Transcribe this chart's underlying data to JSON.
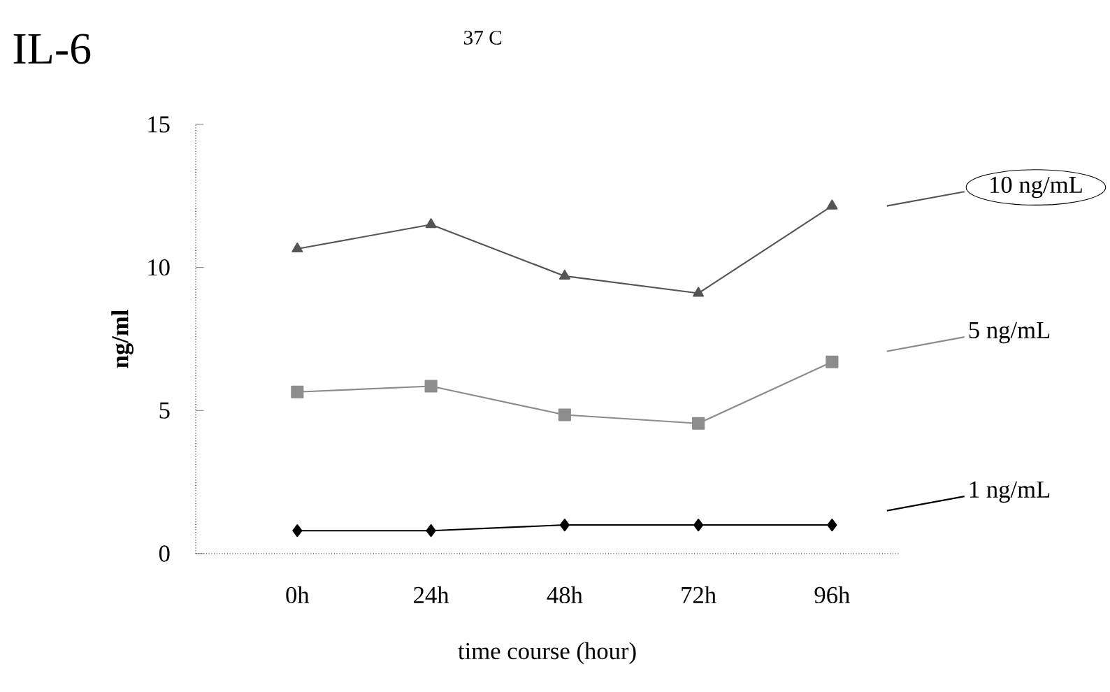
{
  "chart_data": {
    "type": "line",
    "title": "IL-6",
    "subtitle": "37 C",
    "xlabel": "time course (hour)",
    "ylabel": "ng/ml",
    "categories": [
      "0h",
      "24h",
      "48h",
      "72h",
      "96h"
    ],
    "ylim": [
      0,
      15
    ],
    "yticks": [
      0,
      5,
      10,
      15
    ],
    "grid": false,
    "legend": "right",
    "series": [
      {
        "name": "10 ng/mL",
        "color": "#555555",
        "marker": "triangle",
        "values": [
          10.65,
          11.5,
          9.7,
          9.1,
          12.15
        ]
      },
      {
        "name": "5 ng/mL",
        "color": "#8c8c8c",
        "marker": "square",
        "values": [
          5.65,
          5.85,
          4.85,
          4.55,
          6.7
        ]
      },
      {
        "name": "1 ng/mL",
        "color": "#000000",
        "marker": "diamond",
        "values": [
          0.8,
          0.8,
          1.0,
          1.0,
          1.0
        ]
      }
    ]
  }
}
